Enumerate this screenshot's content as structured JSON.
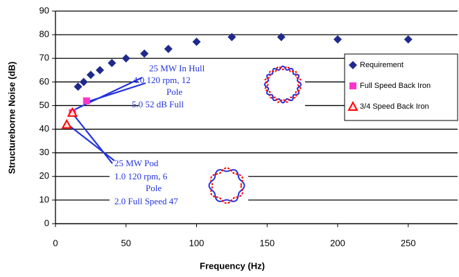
{
  "chart_data": {
    "type": "scatter",
    "xlabel": "Frequency (Hz)",
    "ylabel": "Structureborne Noise (dB)",
    "xlim": [
      0,
      285
    ],
    "ylim": [
      0,
      90
    ],
    "xticks": [
      0,
      50,
      100,
      150,
      200,
      250
    ],
    "yticks": [
      0,
      10,
      20,
      30,
      40,
      50,
      60,
      70,
      80,
      90
    ],
    "grid": true,
    "legend": "right",
    "series": [
      {
        "name": "Requirement",
        "color": "#1f2a8c",
        "marker": "diamond",
        "x": [
          16,
          20,
          25,
          31.5,
          40,
          50,
          63,
          80,
          100,
          125,
          160,
          200,
          250
        ],
        "values": [
          58,
          60,
          63,
          65,
          68,
          70,
          72,
          74,
          77,
          79,
          79,
          78,
          78
        ]
      },
      {
        "name": "Full Speed Back Iron",
        "color": "#ff33cc",
        "marker": "square",
        "x": [
          12,
          22
        ],
        "values": [
          47,
          52
        ]
      },
      {
        "name": "3/4 Speed Back Iron",
        "color": "#ff0000",
        "marker": "triangle",
        "x": [
          8,
          12
        ],
        "values": [
          42,
          47
        ]
      }
    ],
    "annotations": [
      {
        "lines": [
          "25 MW In Hull",
          "4.0  120 rpm, 12",
          "Pole",
          "5.0  52 dB Full"
        ]
      },
      {
        "lines": [
          "25 MW Pod",
          "1.0  120 rpm, 6",
          "Pole",
          "2.0  Full Speed 47"
        ]
      }
    ]
  }
}
